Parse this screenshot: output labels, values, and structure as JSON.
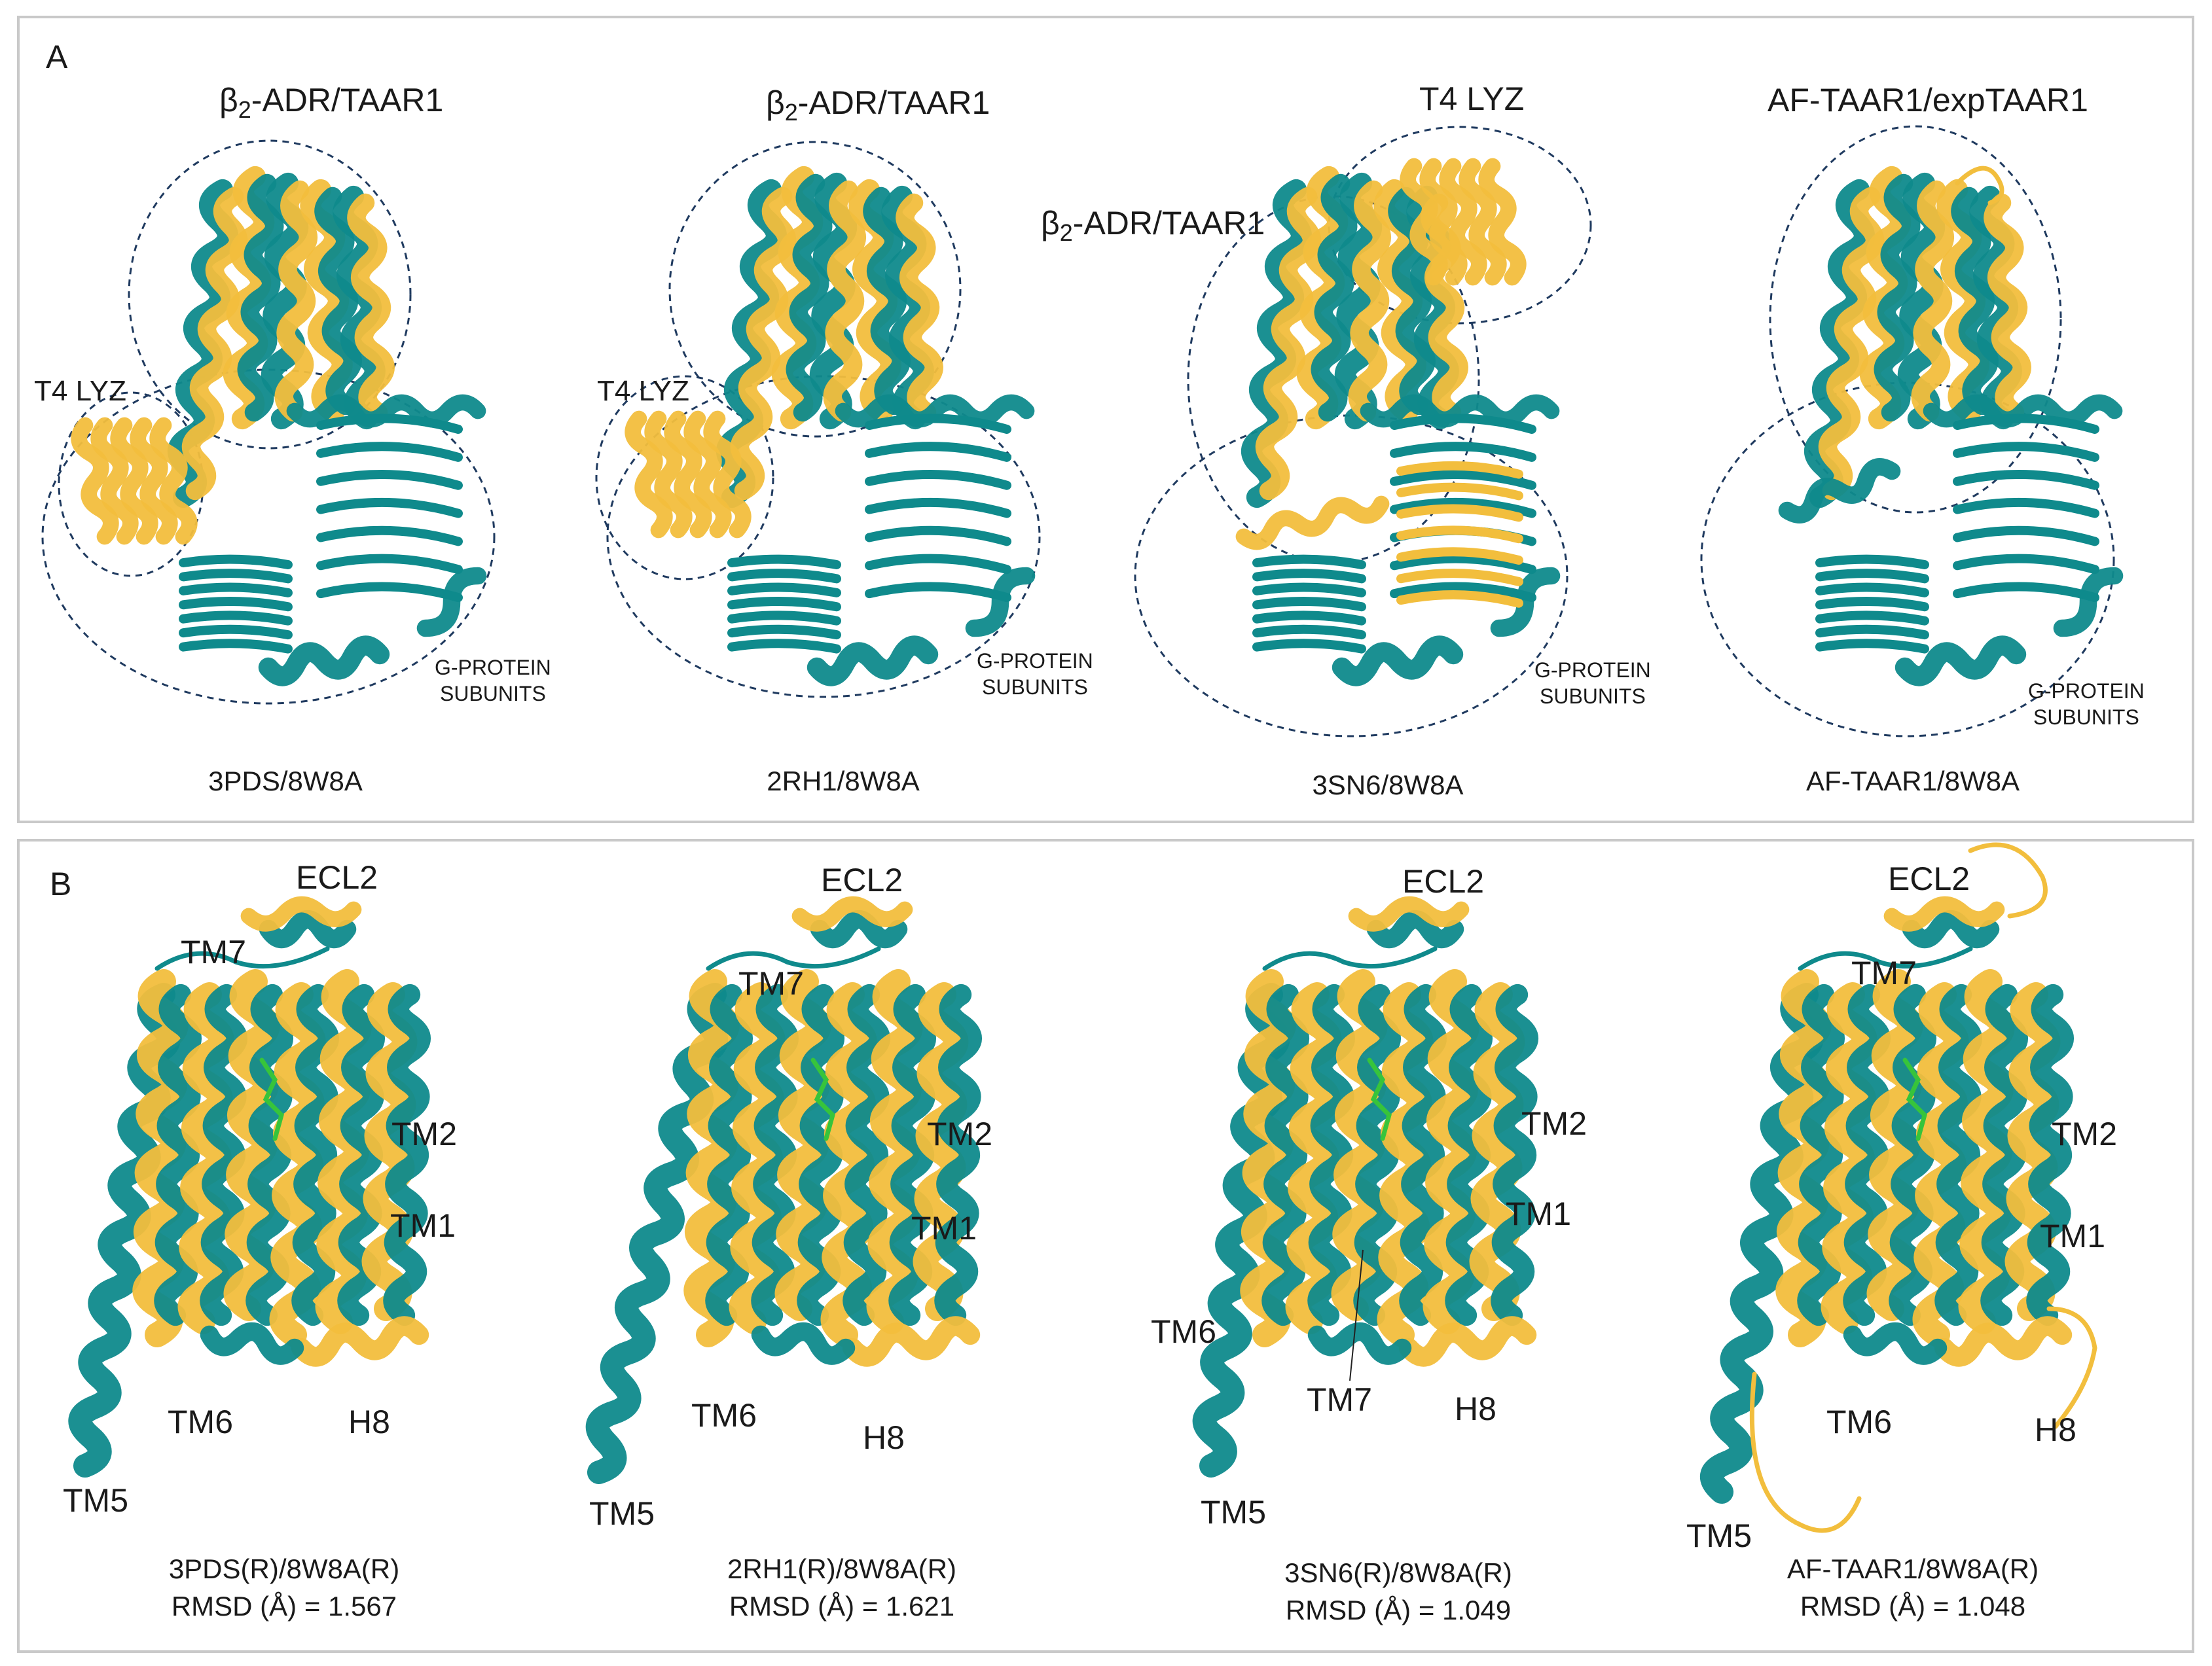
{
  "colors": {
    "receptor_teal": "#0f8a8c",
    "reference_gold": "#f2be3d",
    "ellipse_outline": "#1f3a5f",
    "ligand_green": "#37c43b"
  },
  "panel_a": {
    "letter": "A",
    "structures": [
      {
        "receptor_prefix": "β",
        "receptor_sub": "2",
        "receptor_suffix": "-ADR/TAAR1",
        "lysozyme_label": "T4 LYZ",
        "gprotein_label_line1": "G-PROTEIN",
        "gprotein_label_line2": "SUBUNITS",
        "caption": "3PDS/8W8A"
      },
      {
        "receptor_prefix": "β",
        "receptor_sub": "2",
        "receptor_suffix": "-ADR/TAAR1",
        "lysozyme_label": "T4 LYZ",
        "gprotein_label_line1": "G-PROTEIN",
        "gprotein_label_line2": "SUBUNITS",
        "caption": "2RH1/8W8A"
      },
      {
        "receptor_prefix": "β",
        "receptor_sub": "2",
        "receptor_suffix": "-ADR/TAAR1",
        "lysozyme_label": "T4 LYZ",
        "gprotein_label_line1": "G-PROTEIN",
        "gprotein_label_line2": "SUBUNITS",
        "caption": "3SN6/8W8A"
      },
      {
        "receptor_label": "AF-TAAR1/expTAAR1",
        "gprotein_label_line1": "G-PROTEIN",
        "gprotein_label_line2": "SUBUNITS",
        "caption": "AF-TAAR1/8W8A"
      }
    ]
  },
  "panel_b": {
    "letter": "B",
    "structures": [
      {
        "labels": {
          "ecl2": "ECL2",
          "tm7": "TM7",
          "tm2": "TM2",
          "tm1": "TM1",
          "tm6": "TM6",
          "h8": "H8",
          "tm5": "TM5"
        },
        "caption": "3PDS(R)/8W8A(R)",
        "rmsd": "RMSD (Å) = 1.567"
      },
      {
        "labels": {
          "ecl2": "ECL2",
          "tm7": "TM7",
          "tm2": "TM2",
          "tm1": "TM1",
          "tm6": "TM6",
          "h8": "H8",
          "tm5": "TM5"
        },
        "caption": "2RH1(R)/8W8A(R)",
        "rmsd": "RMSD (Å) = 1.621"
      },
      {
        "labels": {
          "ecl2": "ECL2",
          "tm2": "TM2",
          "tm1": "TM1",
          "tm6": "TM6",
          "tm7": "TM7",
          "h8": "H8",
          "tm5": "TM5"
        },
        "caption": "3SN6(R)/8W8A(R)",
        "rmsd": "RMSD (Å) = 1.049"
      },
      {
        "labels": {
          "ecl2": "ECL2",
          "tm7": "TM7",
          "tm2": "TM2",
          "tm1": "TM1",
          "tm6": "TM6",
          "h8": "H8",
          "tm5": "TM5"
        },
        "caption": "AF-TAAR1/8W8A(R)",
        "rmsd": "RMSD (Å) = 1.048"
      }
    ]
  }
}
